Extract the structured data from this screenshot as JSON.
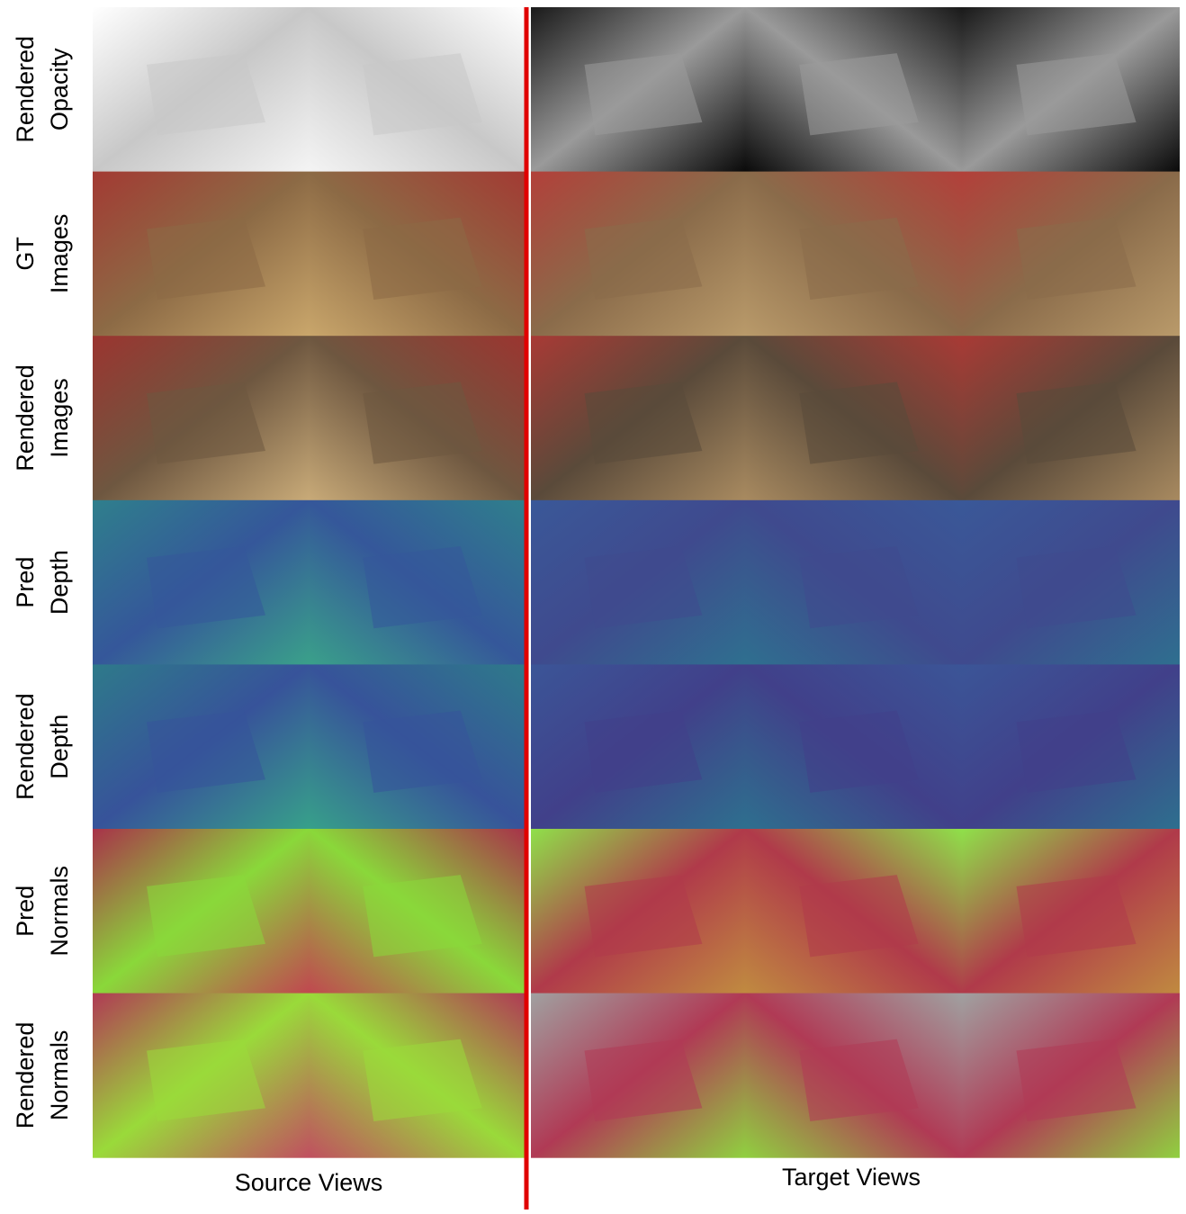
{
  "row_labels": [
    [
      "Rendered",
      "Opacity"
    ],
    [
      "GT",
      "Images"
    ],
    [
      "Rendered",
      "Images"
    ],
    [
      "Pred",
      "Depth"
    ],
    [
      "Rendered",
      "Depth"
    ],
    [
      "Pred",
      "Normals"
    ],
    [
      "Rendered",
      "Normals"
    ]
  ],
  "column_groups": [
    "Source Views",
    "Target Views"
  ]
}
